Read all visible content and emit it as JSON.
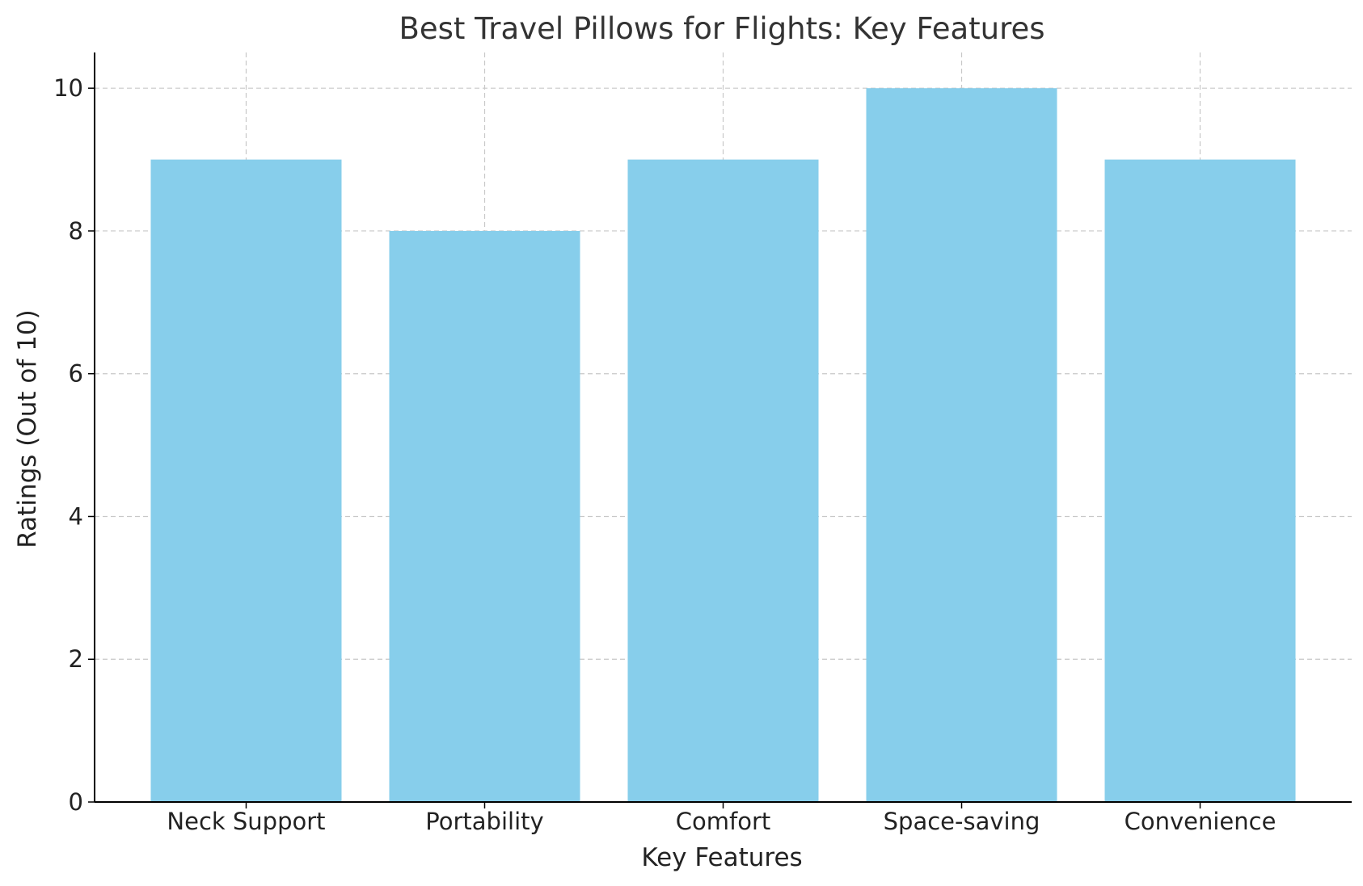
{
  "chart_data": {
    "type": "bar",
    "title": "Best Travel Pillows for Flights: Key Features",
    "xlabel": "Key Features",
    "ylabel": "Ratings (Out of 10)",
    "categories": [
      "Neck Support",
      "Portability",
      "Comfort",
      "Space-saving",
      "Convenience"
    ],
    "values": [
      9,
      8,
      9,
      10,
      9
    ],
    "ylim": [
      0,
      10.5
    ],
    "yticks": [
      0,
      2,
      4,
      6,
      8,
      10
    ],
    "grid": true,
    "bar_color": "#87CEEB"
  }
}
